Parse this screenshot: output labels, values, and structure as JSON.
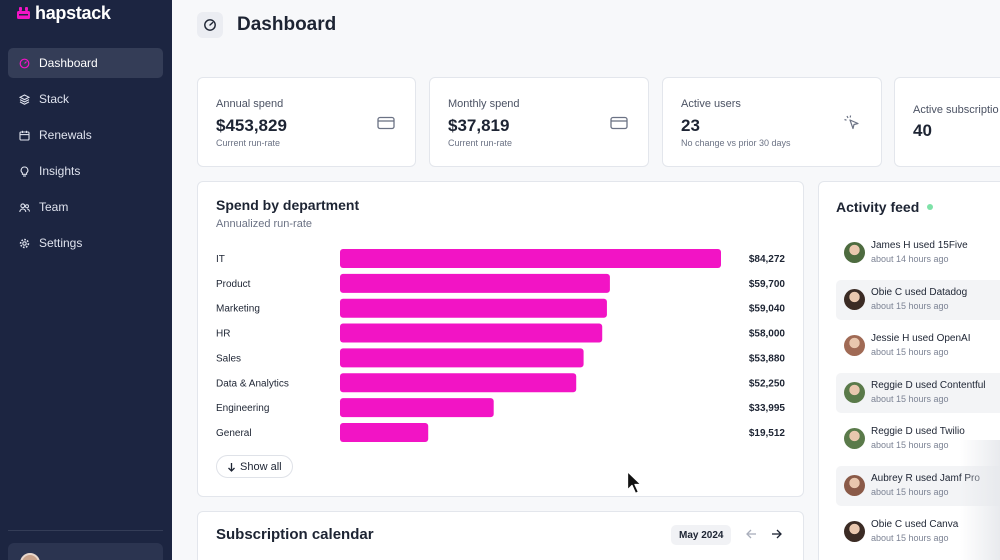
{
  "app": {
    "logo_text": "hapstack",
    "brand_color": "#f214c5"
  },
  "sidebar": {
    "items": [
      {
        "label": "Dashboard",
        "icon": "gauge-icon",
        "active": true
      },
      {
        "label": "Stack",
        "icon": "layers-icon",
        "active": false
      },
      {
        "label": "Renewals",
        "icon": "calendar-icon",
        "active": false
      },
      {
        "label": "Insights",
        "icon": "lightbulb-icon",
        "active": false
      },
      {
        "label": "Team",
        "icon": "users-icon",
        "active": false
      },
      {
        "label": "Settings",
        "icon": "gear-icon",
        "active": false
      }
    ]
  },
  "header": {
    "title": "Dashboard"
  },
  "stats": [
    {
      "label": "Annual spend",
      "value": "$453,829",
      "sub": "Current run-rate",
      "icon": "credit-card-icon"
    },
    {
      "label": "Monthly spend",
      "value": "$37,819",
      "sub": "Current run-rate",
      "icon": "credit-card-icon"
    },
    {
      "label": "Active users",
      "value": "23",
      "sub": "No change vs prior 30 days",
      "icon": "pointer-click-icon"
    },
    {
      "label": "Active subscriptio",
      "value": "40",
      "sub": "",
      "icon": ""
    }
  ],
  "spend": {
    "title": "Spend by department",
    "subtitle": "Annualized run-rate",
    "show_all_label": "Show all"
  },
  "chart_data": {
    "type": "bar",
    "orientation": "horizontal",
    "bar_color": "#f214c5",
    "categories": [
      "IT",
      "Product",
      "Marketing",
      "HR",
      "Sales",
      "Data & Analytics",
      "Engineering",
      "General"
    ],
    "values": [
      84272,
      59700,
      59040,
      58000,
      53880,
      52250,
      33995,
      19512
    ],
    "value_labels": [
      "$84,272",
      "$59,700",
      "$59,040",
      "$58,000",
      "$53,880",
      "$52,250",
      "$33,995",
      "$19,512"
    ],
    "title": "Spend by department",
    "subtitle": "Annualized run-rate",
    "xlabel": "",
    "ylabel": "",
    "grid": false,
    "legend": "none"
  },
  "calendar": {
    "title": "Subscription calendar",
    "month": "May 2024",
    "prev_icon": "arrow-left-icon",
    "next_icon": "arrow-right-icon"
  },
  "activity": {
    "title": "Activity feed",
    "live_color": "#7ee2a8",
    "items": [
      {
        "text": "James H used 15Five",
        "time": "about 14 hours ago",
        "avatar_color": "#4d6b3f",
        "shaded": false
      },
      {
        "text": "Obie C used Datadog",
        "time": "about 15 hours ago",
        "avatar_color": "#3b2b24",
        "shaded": true
      },
      {
        "text": "Jessie H used OpenAI",
        "time": "about 15 hours ago",
        "avatar_color": "#a06a55",
        "shaded": false
      },
      {
        "text": "Reggie D used Contentful",
        "time": "about 15 hours ago",
        "avatar_color": "#5a7a4a",
        "shaded": true
      },
      {
        "text": "Reggie D used Twilio",
        "time": "about 15 hours ago",
        "avatar_color": "#5a7a4a",
        "shaded": false
      },
      {
        "text": "Aubrey R used Jamf Pro",
        "time": "about 15 hours ago",
        "avatar_color": "#8a5a48",
        "shaded": true
      },
      {
        "text": "Obie C used Canva",
        "time": "about 15 hours ago",
        "avatar_color": "#3b2b24",
        "shaded": false
      }
    ]
  }
}
